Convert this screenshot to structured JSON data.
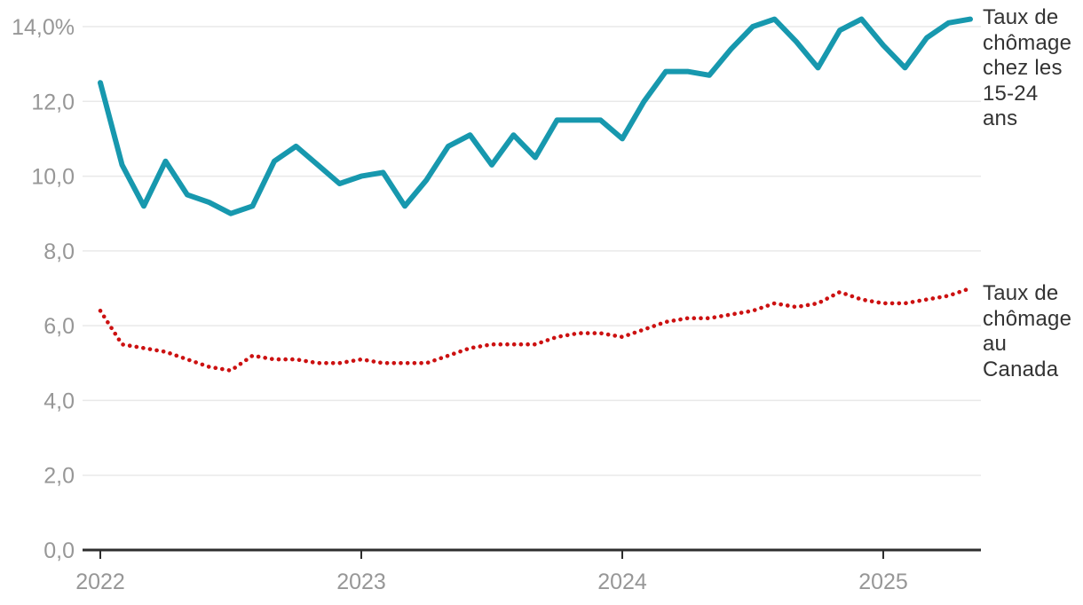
{
  "labels": {
    "youth": "Taux de chômage chez les 15-24 ans",
    "canada": "Taux de chômage au Canada"
  },
  "colors": {
    "youth_line": "#1798ae",
    "canada_line": "#cc1111",
    "gridline": "#e9e9e9",
    "axis": "#2e2e2e",
    "tick_label": "#979797",
    "annotation_text": "#333333"
  },
  "chart_data": {
    "type": "line",
    "title": "",
    "xlabel": "",
    "ylabel": "",
    "x_unit": "month",
    "x_start": "2022-01",
    "x_end": "2025-05",
    "ylim": [
      0,
      14
    ],
    "grid": "horizontal",
    "legend_position": "right-annotations",
    "x_tick_labels": [
      "2022",
      "2023",
      "2024",
      "2025"
    ],
    "y_ticks": [
      {
        "v": 0,
        "t": "0,0"
      },
      {
        "v": 2,
        "t": "2,0"
      },
      {
        "v": 4,
        "t": "4,0"
      },
      {
        "v": 6,
        "t": "6,0"
      },
      {
        "v": 8,
        "t": "8,0"
      },
      {
        "v": 10,
        "t": "10,0"
      },
      {
        "v": 12,
        "t": "12,0"
      },
      {
        "v": 14,
        "t": "14,0%"
      }
    ],
    "series": [
      {
        "name": "Taux de chômage chez les 15-24 ans",
        "style": "solid",
        "color": "#1798ae",
        "values": [
          12.5,
          10.3,
          9.2,
          10.4,
          9.5,
          9.3,
          9.0,
          9.2,
          10.4,
          10.8,
          10.3,
          9.8,
          10.0,
          10.1,
          9.2,
          9.9,
          10.8,
          11.1,
          10.3,
          11.1,
          10.5,
          11.5,
          11.5,
          11.5,
          11.0,
          12.0,
          12.8,
          12.8,
          12.7,
          13.4,
          14.0,
          14.2,
          13.6,
          12.9,
          13.9,
          14.2,
          13.5,
          12.9,
          13.7,
          14.1,
          14.2
        ]
      },
      {
        "name": "Taux de chômage au Canada",
        "style": "dotted",
        "color": "#cc1111",
        "values": [
          6.4,
          5.5,
          5.4,
          5.3,
          5.1,
          4.9,
          4.8,
          5.2,
          5.1,
          5.1,
          5.0,
          5.0,
          5.1,
          5.0,
          5.0,
          5.0,
          5.2,
          5.4,
          5.5,
          5.5,
          5.5,
          5.7,
          5.8,
          5.8,
          5.7,
          5.9,
          6.1,
          6.2,
          6.2,
          6.3,
          6.4,
          6.6,
          6.5,
          6.6,
          6.9,
          6.7,
          6.6,
          6.6,
          6.7,
          6.8,
          7.0
        ]
      }
    ]
  }
}
